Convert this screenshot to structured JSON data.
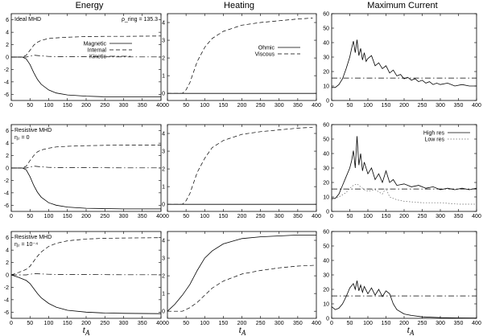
{
  "column_titles": [
    "Energy",
    "Heating",
    "Maximum Current"
  ],
  "x_axis_label": "t_A",
  "chart_data": [
    {
      "type": "line",
      "panel": "ideal-energy",
      "row": 0,
      "col": 0,
      "xlim": [
        0,
        400
      ],
      "ylim": [
        -7,
        7
      ],
      "xticks": [
        0,
        50,
        100,
        150,
        200,
        250,
        300,
        350,
        400
      ],
      "yticks": [
        6,
        4,
        2,
        0,
        -2,
        -4,
        -6
      ],
      "ytick_labels": [
        "6",
        "4",
        "2",
        "0",
        "-2",
        "-4",
        "-6"
      ],
      "annotations": [
        "Ideal MHD",
        "ρ_ring = 135.3"
      ],
      "legend": [
        "Magnetic",
        "Internal",
        "Kinetic"
      ],
      "legend_position": "middle-right",
      "series": [
        {
          "name": "Magnetic",
          "style": "solid",
          "x": [
            0,
            30,
            40,
            50,
            60,
            70,
            80,
            100,
            120,
            150,
            200,
            250,
            300,
            400
          ],
          "y": [
            0,
            0,
            -0.3,
            -1.2,
            -2.5,
            -3.6,
            -4.4,
            -5.3,
            -5.8,
            -6.1,
            -6.3,
            -6.4,
            -6.4,
            -6.4
          ]
        },
        {
          "name": "Internal",
          "style": "dashed",
          "x": [
            0,
            30,
            40,
            50,
            60,
            70,
            80,
            100,
            120,
            150,
            200,
            250,
            300,
            400
          ],
          "y": [
            0,
            0,
            0.3,
            1.1,
            1.9,
            2.4,
            2.7,
            3.0,
            3.1,
            3.2,
            3.3,
            3.35,
            3.35,
            3.4
          ]
        },
        {
          "name": "Kinetic",
          "style": "dashdot",
          "x": [
            0,
            40,
            60,
            80,
            100,
            150,
            200,
            300,
            400
          ],
          "y": [
            0,
            0,
            0.3,
            0.2,
            0.1,
            0.05,
            0.05,
            0.03,
            0.02
          ]
        }
      ]
    },
    {
      "type": "line",
      "panel": "ideal-heating",
      "row": 0,
      "col": 1,
      "xlim": [
        0,
        400
      ],
      "ylim": [
        -0.4,
        4.5
      ],
      "xticks": [
        0,
        50,
        100,
        150,
        200,
        250,
        300,
        350,
        400
      ],
      "yticks": [
        0,
        1,
        2,
        3,
        4
      ],
      "ytick_labels": [
        "0",
        "1",
        "2",
        "3",
        "4"
      ],
      "annotations": [],
      "legend": [
        "Ohmic",
        "Viscous"
      ],
      "legend_position": "middle-right",
      "series": [
        {
          "name": "Ohmic",
          "style": "solid",
          "x": [
            0,
            400
          ],
          "y": [
            0,
            0
          ]
        },
        {
          "name": "Viscous",
          "style": "dashed",
          "x": [
            0,
            40,
            50,
            60,
            70,
            80,
            100,
            120,
            150,
            200,
            250,
            300,
            350,
            390
          ],
          "y": [
            0,
            0,
            0.2,
            0.6,
            1.2,
            1.8,
            2.6,
            3.1,
            3.5,
            3.85,
            4.0,
            4.1,
            4.2,
            4.25
          ]
        }
      ]
    },
    {
      "type": "line",
      "panel": "ideal-current",
      "row": 0,
      "col": 2,
      "xlim": [
        0,
        400
      ],
      "ylim": [
        0,
        60
      ],
      "xticks": [
        0,
        50,
        100,
        150,
        200,
        250,
        300,
        350,
        400
      ],
      "yticks": [
        0,
        10,
        20,
        30,
        40,
        50,
        60
      ],
      "ytick_labels": [
        "0",
        "10",
        "20",
        "30",
        "40",
        "50",
        "60"
      ],
      "annotations": [],
      "legend": [],
      "legend_position": "none",
      "series": [
        {
          "name": "Current",
          "style": "solid",
          "x": [
            0,
            10,
            20,
            30,
            40,
            50,
            55,
            60,
            65,
            70,
            75,
            80,
            85,
            90,
            95,
            100,
            110,
            120,
            130,
            140,
            150,
            160,
            170,
            180,
            190,
            200,
            210,
            220,
            230,
            240,
            250,
            260,
            270,
            280,
            290,
            300,
            320,
            340,
            360,
            380,
            400
          ],
          "y": [
            9,
            9,
            11,
            15,
            22,
            30,
            36,
            41,
            33,
            42,
            31,
            36,
            28,
            33,
            27,
            29,
            31,
            24,
            26,
            22,
            24,
            19,
            21,
            17,
            18,
            15,
            16,
            14,
            15,
            13,
            14,
            12,
            13,
            11,
            12,
            11,
            12,
            10,
            11,
            10,
            10
          ]
        },
        {
          "name": "Threshold",
          "style": "dashdot",
          "x": [
            0,
            400
          ],
          "y": [
            15.5,
            15.5
          ]
        }
      ]
    },
    {
      "type": "line",
      "panel": "resistive0-energy",
      "row": 1,
      "col": 0,
      "xlim": [
        0,
        400
      ],
      "ylim": [
        -7,
        7
      ],
      "xticks": [
        0,
        50,
        100,
        150,
        200,
        250,
        300,
        350,
        400
      ],
      "yticks": [
        6,
        4,
        2,
        0,
        -2,
        -4,
        -6
      ],
      "ytick_labels": [
        "6",
        "4",
        "2",
        "0",
        "-2",
        "-4",
        "-6"
      ],
      "annotations": [
        "Resistive MHD",
        "η₂ = 0"
      ],
      "legend": [],
      "legend_position": "none",
      "series": [
        {
          "name": "Magnetic",
          "style": "solid",
          "x": [
            0,
            30,
            40,
            50,
            60,
            70,
            80,
            100,
            120,
            150,
            200,
            250,
            300,
            400
          ],
          "y": [
            0,
            0,
            -0.3,
            -1.4,
            -2.8,
            -3.9,
            -4.7,
            -5.6,
            -6.0,
            -6.3,
            -6.5,
            -6.55,
            -6.6,
            -6.6
          ]
        },
        {
          "name": "Internal",
          "style": "dashed",
          "x": [
            0,
            30,
            40,
            50,
            60,
            70,
            80,
            100,
            120,
            150,
            200,
            250,
            300,
            400
          ],
          "y": [
            0,
            0,
            0.3,
            1.2,
            2.0,
            2.6,
            2.9,
            3.2,
            3.4,
            3.5,
            3.6,
            3.65,
            3.7,
            3.7
          ]
        },
        {
          "name": "Kinetic",
          "style": "dashdot",
          "x": [
            0,
            40,
            60,
            80,
            100,
            150,
            200,
            300,
            400
          ],
          "y": [
            0,
            0,
            0.3,
            0.2,
            0.1,
            0.05,
            0.05,
            0.03,
            0.02
          ]
        }
      ]
    },
    {
      "type": "line",
      "panel": "resistive0-heating",
      "row": 1,
      "col": 1,
      "xlim": [
        0,
        400
      ],
      "ylim": [
        -0.4,
        4.5
      ],
      "xticks": [
        0,
        50,
        100,
        150,
        200,
        250,
        300,
        350,
        400
      ],
      "yticks": [
        0,
        1,
        2,
        3,
        4
      ],
      "ytick_labels": [
        "0",
        "1",
        "2",
        "3",
        "4"
      ],
      "annotations": [],
      "legend": [],
      "legend_position": "none",
      "series": [
        {
          "name": "Ohmic",
          "style": "solid",
          "x": [
            0,
            400
          ],
          "y": [
            0,
            0
          ]
        },
        {
          "name": "Viscous",
          "style": "dashed",
          "x": [
            0,
            40,
            50,
            60,
            70,
            80,
            100,
            120,
            150,
            200,
            250,
            300,
            350,
            390
          ],
          "y": [
            0,
            0,
            0.2,
            0.6,
            1.2,
            1.8,
            2.6,
            3.2,
            3.6,
            3.95,
            4.1,
            4.2,
            4.3,
            4.35
          ]
        }
      ]
    },
    {
      "type": "line",
      "panel": "resistive0-current",
      "row": 1,
      "col": 2,
      "xlim": [
        0,
        400
      ],
      "ylim": [
        0,
        60
      ],
      "xticks": [
        0,
        50,
        100,
        150,
        200,
        250,
        300,
        350,
        400
      ],
      "yticks": [
        0,
        10,
        20,
        30,
        40,
        50,
        60
      ],
      "ytick_labels": [
        "0",
        "10",
        "20",
        "30",
        "40",
        "50",
        "60"
      ],
      "annotations": [],
      "legend": [
        "High res",
        "Low res"
      ],
      "legend_position": "top-right",
      "series": [
        {
          "name": "High res",
          "style": "solid",
          "x": [
            0,
            10,
            20,
            30,
            40,
            50,
            55,
            60,
            65,
            70,
            75,
            80,
            85,
            90,
            100,
            110,
            120,
            130,
            140,
            150,
            160,
            170,
            180,
            200,
            220,
            240,
            260,
            280,
            300,
            320,
            340,
            360,
            380,
            400
          ],
          "y": [
            9,
            9,
            12,
            18,
            24,
            30,
            35,
            42,
            30,
            52,
            32,
            40,
            28,
            34,
            26,
            30,
            22,
            26,
            20,
            28,
            20,
            22,
            18,
            19,
            17,
            18,
            16,
            17,
            15,
            16,
            15,
            16,
            15,
            16
          ]
        },
        {
          "name": "Low res",
          "style": "dotted",
          "x": [
            0,
            20,
            40,
            50,
            60,
            70,
            80,
            90,
            100,
            120,
            140,
            150,
            160,
            170,
            180,
            200,
            250,
            300,
            350,
            400
          ],
          "y": [
            8,
            10,
            13,
            16,
            18,
            19,
            17,
            15,
            14,
            15,
            12,
            16,
            10,
            9,
            8,
            7,
            6,
            6,
            5,
            5
          ]
        },
        {
          "name": "Threshold",
          "style": "dashdot",
          "x": [
            0,
            400
          ],
          "y": [
            15.5,
            15.5
          ]
        }
      ]
    },
    {
      "type": "line",
      "panel": "resistive4-energy",
      "row": 2,
      "col": 0,
      "xlim": [
        0,
        400
      ],
      "ylim": [
        -7,
        7
      ],
      "xticks": [
        0,
        50,
        100,
        150,
        200,
        250,
        300,
        350,
        400
      ],
      "yticks": [
        6,
        4,
        2,
        0,
        -2,
        -4,
        -6
      ],
      "ytick_labels": [
        "6",
        "4",
        "2",
        "0",
        "-2",
        "-4",
        "-6"
      ],
      "annotations": [
        "Resistive MHD",
        "η₂ = 10⁻⁴"
      ],
      "legend": [],
      "legend_position": "none",
      "series": [
        {
          "name": "Magnetic",
          "style": "solid",
          "x": [
            0,
            20,
            40,
            50,
            60,
            70,
            80,
            100,
            120,
            150,
            200,
            250,
            300,
            400
          ],
          "y": [
            0,
            -0.4,
            -0.9,
            -1.4,
            -2.2,
            -3.0,
            -3.7,
            -4.6,
            -5.2,
            -5.7,
            -6.0,
            -6.15,
            -6.2,
            -6.25
          ]
        },
        {
          "name": "Internal",
          "style": "dashed",
          "x": [
            0,
            20,
            40,
            50,
            60,
            70,
            80,
            100,
            120,
            150,
            200,
            250,
            300,
            400
          ],
          "y": [
            0,
            0.4,
            0.9,
            1.4,
            2.2,
            3.0,
            3.7,
            4.6,
            5.1,
            5.5,
            5.8,
            5.9,
            5.95,
            6.0
          ]
        },
        {
          "name": "Kinetic",
          "style": "dashdot",
          "x": [
            0,
            40,
            60,
            80,
            100,
            150,
            200,
            300,
            400
          ],
          "y": [
            0,
            0,
            0.2,
            0.15,
            0.1,
            0.05,
            0.05,
            0.03,
            0.02
          ]
        }
      ]
    },
    {
      "type": "line",
      "panel": "resistive4-heating",
      "row": 2,
      "col": 1,
      "xlim": [
        0,
        400
      ],
      "ylim": [
        -0.4,
        4.5
      ],
      "xticks": [
        0,
        50,
        100,
        150,
        200,
        250,
        300,
        350,
        400
      ],
      "yticks": [
        0,
        1,
        2,
        3,
        4
      ],
      "ytick_labels": [
        "0",
        "1",
        "2",
        "3",
        "4"
      ],
      "annotations": [],
      "legend": [],
      "legend_position": "none",
      "series": [
        {
          "name": "Ohmic",
          "style": "solid",
          "x": [
            0,
            20,
            40,
            60,
            80,
            100,
            120,
            150,
            200,
            250,
            300,
            350,
            400
          ],
          "y": [
            0,
            0.4,
            0.9,
            1.5,
            2.3,
            3.0,
            3.4,
            3.8,
            4.1,
            4.2,
            4.25,
            4.3,
            4.3
          ]
        },
        {
          "name": "Viscous",
          "style": "dashed",
          "x": [
            0,
            20,
            40,
            60,
            80,
            100,
            120,
            150,
            200,
            250,
            300,
            350,
            400
          ],
          "y": [
            0,
            0,
            0,
            0.2,
            0.5,
            0.9,
            1.3,
            1.7,
            2.1,
            2.3,
            2.45,
            2.55,
            2.6
          ]
        }
      ]
    },
    {
      "type": "line",
      "panel": "resistive4-current",
      "row": 2,
      "col": 2,
      "xlim": [
        0,
        400
      ],
      "ylim": [
        0,
        60
      ],
      "xticks": [
        0,
        50,
        100,
        150,
        200,
        250,
        300,
        350,
        400
      ],
      "yticks": [
        0,
        10,
        20,
        30,
        40,
        50,
        60
      ],
      "ytick_labels": [
        "0",
        "10",
        "20",
        "30",
        "40",
        "50",
        "60"
      ],
      "annotations": [],
      "legend": [],
      "legend_position": "none",
      "series": [
        {
          "name": "Current",
          "style": "solid",
          "x": [
            0,
            10,
            20,
            30,
            40,
            50,
            60,
            65,
            70,
            75,
            80,
            85,
            90,
            100,
            110,
            120,
            130,
            140,
            150,
            160,
            170,
            180,
            200,
            220,
            250,
            300,
            350,
            400
          ],
          "y": [
            8,
            6,
            7,
            10,
            15,
            21,
            24,
            20,
            26,
            19,
            23,
            18,
            22,
            17,
            21,
            16,
            20,
            15,
            19,
            17,
            10,
            6,
            3,
            2,
            1,
            0.5,
            0.3,
            0.2
          ]
        },
        {
          "name": "Threshold",
          "style": "dashdot",
          "x": [
            0,
            400
          ],
          "y": [
            15.5,
            15.5
          ]
        }
      ]
    }
  ]
}
